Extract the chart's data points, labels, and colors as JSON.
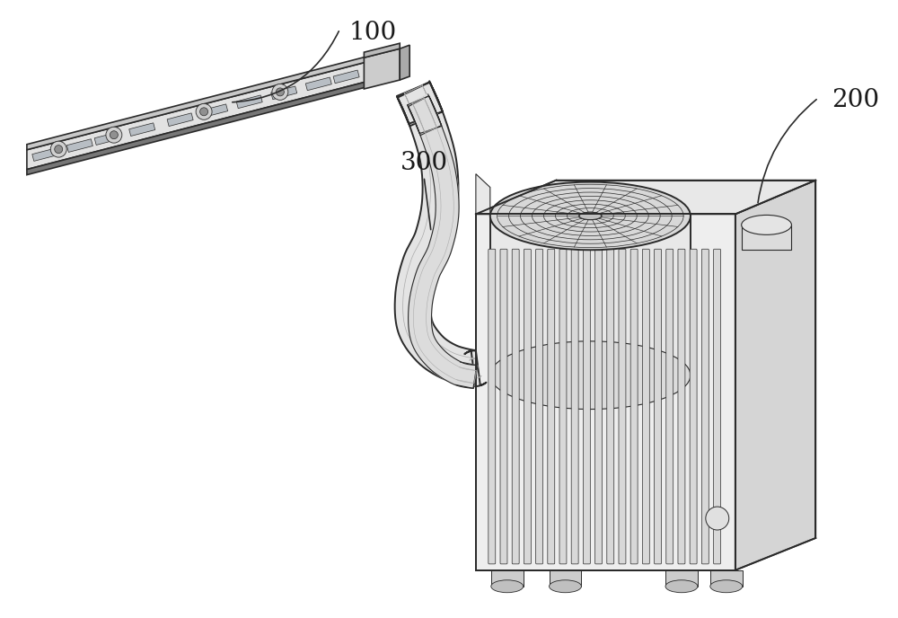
{
  "background_color": "#ffffff",
  "line_color": "#2a2a2a",
  "fig_width": 10.0,
  "fig_height": 6.88,
  "dpi": 100,
  "label_100": "100",
  "label_200": "200",
  "label_300": "300"
}
